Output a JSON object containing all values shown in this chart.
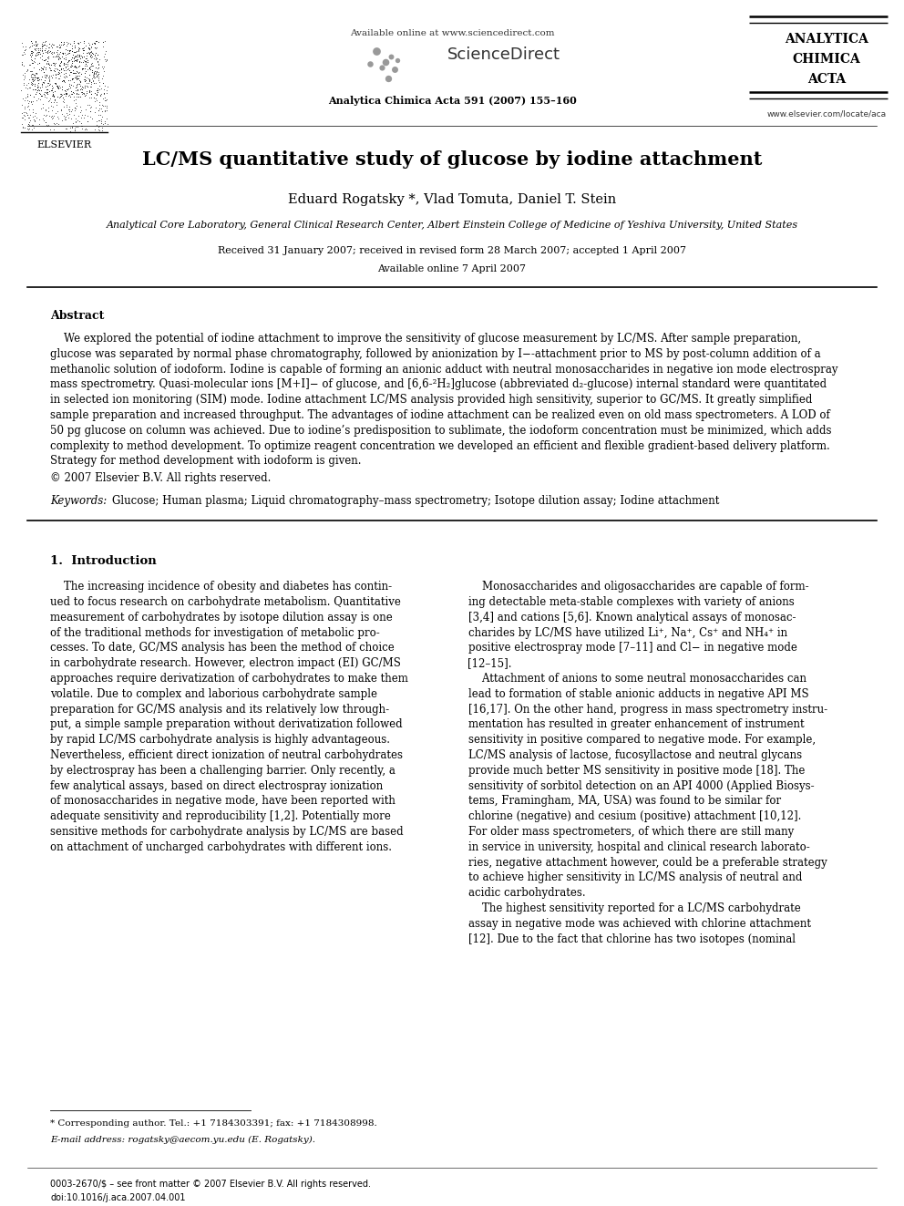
{
  "bg_color": "#ffffff",
  "page_width": 9.92,
  "page_height": 13.23,
  "header": {
    "elsevier_text": "ELSEVIER",
    "available_online": "Available online at www.sciencedirect.com",
    "sciencedirect": "ScienceDirect",
    "journal_name_line1": "ANALYTICA",
    "journal_name_line2": "CHIMICA",
    "journal_name_line3": "ACTA",
    "journal_ref": "Analytica Chimica Acta 591 (2007) 155–160",
    "website": "www.elsevier.com/locate/aca"
  },
  "title": "LC/MS quantitative study of glucose by iodine attachment",
  "authors": "Eduard Rogatsky *, Vlad Tomuta, Daniel T. Stein",
  "affiliation": "Analytical Core Laboratory, General Clinical Research Center, Albert Einstein College of Medicine of Yeshiva University, United States",
  "dates": "Received 31 January 2007; received in revised form 28 March 2007; accepted 1 April 2007",
  "available": "Available online 7 April 2007",
  "abstract_title": "Abstract",
  "copyright": "© 2007 Elsevier B.V. All rights reserved.",
  "keywords_label": "Keywords:",
  "keywords_text": "Glucose; Human plasma; Liquid chromatography–mass spectrometry; Isotope dilution assay; Iodine attachment",
  "section1_title": "1.  Introduction",
  "footnote_star": "* Corresponding author. Tel.: +1 7184303391; fax: +1 7184308998.",
  "footnote_email": "E-mail address: rogatsky@aecom.yu.edu (E. Rogatsky).",
  "footer_issn": "0003-2670/$ – see front matter © 2007 Elsevier B.V. All rights reserved.",
  "footer_doi": "doi:10.1016/j.aca.2007.04.001",
  "abstract_lines": [
    "    We explored the potential of iodine attachment to improve the sensitivity of glucose measurement by LC/MS. After sample preparation,",
    "glucose was separated by normal phase chromatography, followed by anionization by I−-attachment prior to MS by post-column addition of a",
    "methanolic solution of iodoform. Iodine is capable of forming an anionic adduct with neutral monosaccharides in negative ion mode electrospray",
    "mass spectrometry. Quasi-molecular ions [M+I]− of glucose, and [6,6-²H₂]glucose (abbreviated d₂-glucose) internal standard were quantitated",
    "in selected ion monitoring (SIM) mode. Iodine attachment LC/MS analysis provided high sensitivity, superior to GC/MS. It greatly simplified",
    "sample preparation and increased throughput. The advantages of iodine attachment can be realized even on old mass spectrometers. A LOD of",
    "50 pg glucose on column was achieved. Due to iodine’s predisposition to sublimate, the iodoform concentration must be minimized, which adds",
    "complexity to method development. To optimize reagent concentration we developed an efficient and flexible gradient-based delivery platform.",
    "Strategy for method development with iodoform is given."
  ],
  "col1_lines": [
    "    The increasing incidence of obesity and diabetes has contin-",
    "ued to focus research on carbohydrate metabolism. Quantitative",
    "measurement of carbohydrates by isotope dilution assay is one",
    "of the traditional methods for investigation of metabolic pro-",
    "cesses. To date, GC/MS analysis has been the method of choice",
    "in carbohydrate research. However, electron impact (EI) GC/MS",
    "approaches require derivatization of carbohydrates to make them",
    "volatile. Due to complex and laborious carbohydrate sample",
    "preparation for GC/MS analysis and its relatively low through-",
    "put, a simple sample preparation without derivatization followed",
    "by rapid LC/MS carbohydrate analysis is highly advantageous.",
    "Nevertheless, efficient direct ionization of neutral carbohydrates",
    "by electrospray has been a challenging barrier. Only recently, a",
    "few analytical assays, based on direct electrospray ionization",
    "of monosaccharides in negative mode, have been reported with",
    "adequate sensitivity and reproducibility [1,2]. Potentially more",
    "sensitive methods for carbohydrate analysis by LC/MS are based",
    "on attachment of uncharged carbohydrates with different ions."
  ],
  "col2_lines": [
    "    Monosaccharides and oligosaccharides are capable of form-",
    "ing detectable meta-stable complexes with variety of anions",
    "[3,4] and cations [5,6]. Known analytical assays of monosac-",
    "charides by LC/MS have utilized Li⁺, Na⁺, Cs⁺ and NH₄⁺ in",
    "positive electrospray mode [7–11] and Cl− in negative mode",
    "[12–15].",
    "    Attachment of anions to some neutral monosaccharides can",
    "lead to formation of stable anionic adducts in negative API MS",
    "[16,17]. On the other hand, progress in mass spectrometry instru-",
    "mentation has resulted in greater enhancement of instrument",
    "sensitivity in positive compared to negative mode. For example,",
    "LC/MS analysis of lactose, fucosyllactose and neutral glycans",
    "provide much better MS sensitivity in positive mode [18]. The",
    "sensitivity of sorbitol detection on an API 4000 (Applied Biosys-",
    "tems, Framingham, MA, USA) was found to be similar for",
    "chlorine (negative) and cesium (positive) attachment [10,12].",
    "For older mass spectrometers, of which there are still many",
    "in service in university, hospital and clinical research laborato-",
    "ries, negative attachment however, could be a preferable strategy",
    "to achieve higher sensitivity in LC/MS analysis of neutral and",
    "acidic carbohydrates.",
    "    The highest sensitivity reported for a LC/MS carbohydrate",
    "assay in negative mode was achieved with chlorine attachment",
    "[12]. Due to the fact that chlorine has two isotopes (nominal"
  ]
}
